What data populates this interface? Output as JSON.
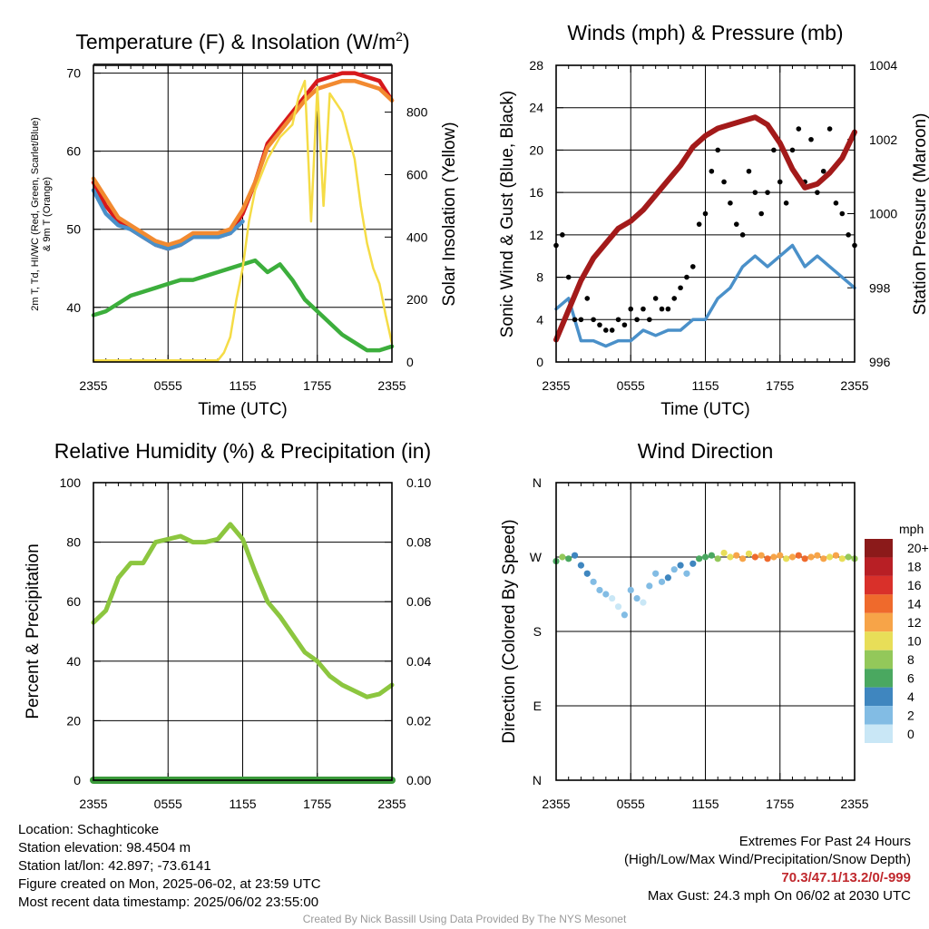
{
  "chart_data": [
    {
      "type": "line",
      "title": "Temperature (F) & Insolation (W/m²)",
      "xlabel": "Time (UTC)",
      "ylabel": "2m T, Td, HI/WC (Red, Green, Scarlet/Blue) & 9m T (Orange)",
      "ylabel_right": "Solar Insolation (Yellow)",
      "x_ticks": [
        "2355",
        "0555",
        "1155",
        "1755",
        "2355"
      ],
      "y_ticks": [
        40,
        50,
        60,
        70
      ],
      "y_ticks_right": [
        0,
        200,
        400,
        600,
        800
      ],
      "ylim": [
        33,
        71
      ],
      "ylim_right": [
        0,
        950
      ],
      "grid": true,
      "series": [
        {
          "name": "2m T",
          "axis": "left",
          "color": "#d7191c",
          "x": [
            0,
            1,
            2,
            3,
            4,
            5,
            6,
            7,
            8,
            9,
            10,
            11,
            12,
            13,
            14,
            15,
            16,
            17,
            18,
            19,
            20,
            21,
            22,
            23,
            24
          ],
          "y": [
            56,
            53,
            51,
            50,
            49,
            48,
            47.5,
            48,
            49,
            49,
            49,
            49.5,
            52,
            56,
            61,
            63,
            65,
            67,
            69,
            69.5,
            70,
            70,
            69.5,
            69,
            66.5
          ]
        },
        {
          "name": "HI/WC",
          "axis": "left",
          "color": "#4a90c9",
          "x": [
            0,
            1,
            2,
            3,
            4,
            5,
            6,
            7,
            8,
            9,
            10,
            11,
            12
          ],
          "y": [
            55,
            52,
            50.5,
            50,
            49,
            48,
            47.5,
            48,
            49,
            49,
            49,
            49.5,
            51
          ]
        },
        {
          "name": "9m T",
          "axis": "left",
          "color": "#f28a30",
          "x": [
            0,
            1,
            2,
            3,
            4,
            5,
            6,
            7,
            8,
            9,
            10,
            11,
            12,
            13,
            14,
            15,
            16,
            17,
            18,
            19,
            20,
            21,
            22,
            23,
            24
          ],
          "y": [
            56.5,
            54,
            51.5,
            50.5,
            49.5,
            48.5,
            48,
            48.5,
            49.5,
            49.5,
            49.5,
            50,
            52.5,
            56,
            60.5,
            62.5,
            64.5,
            66.5,
            68,
            68.5,
            69,
            69,
            68.5,
            68,
            66.5
          ]
        },
        {
          "name": "2m Td",
          "axis": "left",
          "color": "#3cae3c",
          "x": [
            0,
            1,
            2,
            3,
            4,
            5,
            6,
            7,
            8,
            9,
            10,
            11,
            12,
            13,
            14,
            15,
            16,
            17,
            18,
            19,
            20,
            21,
            22,
            23,
            24
          ],
          "y": [
            39,
            39.5,
            40.5,
            41.5,
            42,
            42.5,
            43,
            43.5,
            43.5,
            44,
            44.5,
            45,
            45.5,
            46,
            44.5,
            45.5,
            43.5,
            41,
            39.5,
            38,
            36.5,
            35.5,
            34.5,
            34.5,
            35
          ]
        },
        {
          "name": "Solar Insolation",
          "axis": "right",
          "color": "#f5dc46",
          "x": [
            0,
            2,
            4,
            6,
            8,
            9,
            10,
            10.5,
            11,
            11.5,
            12,
            12.5,
            13,
            14,
            15,
            16,
            16.5,
            17,
            17.5,
            18,
            18.5,
            19,
            20,
            21,
            21.5,
            22,
            22.5,
            23,
            23.5,
            24
          ],
          "y": [
            5,
            5,
            5,
            5,
            5,
            5,
            5,
            30,
            80,
            200,
            300,
            450,
            550,
            650,
            720,
            760,
            850,
            900,
            450,
            880,
            500,
            860,
            800,
            650,
            500,
            380,
            300,
            250,
            150,
            60
          ]
        }
      ]
    },
    {
      "type": "line",
      "title": "Winds (mph) & Pressure (mb)",
      "xlabel": "Time (UTC)",
      "ylabel": "Sonic Wind & Gust (Blue, Black)",
      "ylabel_right": "Station Pressure (Maroon)",
      "x_ticks": [
        "2355",
        "0555",
        "1155",
        "1755",
        "2355"
      ],
      "y_ticks": [
        0,
        4,
        8,
        12,
        16,
        20,
        24,
        28
      ],
      "y_ticks_right": [
        996,
        998,
        1000,
        1002,
        1004
      ],
      "ylim": [
        0,
        28
      ],
      "ylim_right": [
        996,
        1004
      ],
      "grid": true,
      "series": [
        {
          "name": "Sonic Wind",
          "axis": "left",
          "color": "#4a90c9",
          "x": [
            0,
            1,
            2,
            3,
            4,
            5,
            6,
            7,
            8,
            9,
            10,
            11,
            12,
            13,
            14,
            15,
            16,
            17,
            18,
            19,
            20,
            21,
            22,
            23,
            24
          ],
          "y": [
            5,
            6,
            2,
            2,
            1.5,
            2,
            2,
            3,
            2.5,
            3,
            3,
            4,
            4,
            6,
            7,
            9,
            10,
            9,
            10,
            11,
            9,
            10,
            9,
            8,
            7
          ]
        },
        {
          "name": "Gust",
          "axis": "left",
          "color": "#000000",
          "mode": "markers",
          "x": [
            0,
            0.5,
            1,
            1.5,
            2,
            2.5,
            3,
            3.5,
            4,
            4.5,
            5,
            5.5,
            6,
            6.5,
            7,
            7.5,
            8,
            8.5,
            9,
            9.5,
            10,
            10.5,
            11,
            11.5,
            12,
            12.5,
            13,
            13.5,
            14,
            14.5,
            15,
            15.5,
            16,
            16.5,
            17,
            17.5,
            18,
            18.5,
            19,
            19.5,
            20,
            20.5,
            21,
            21.5,
            22,
            22.5,
            23,
            23.5,
            24
          ],
          "y": [
            11,
            12,
            8,
            4,
            4,
            6,
            4,
            3.5,
            3,
            3,
            4,
            3.5,
            5,
            4,
            5,
            4,
            6,
            5,
            5,
            6,
            7,
            8,
            9,
            13,
            14,
            18,
            20,
            17,
            15,
            13,
            12,
            18,
            16,
            14,
            16,
            20,
            17,
            15,
            20,
            22,
            17,
            21,
            16,
            18,
            22,
            15,
            14,
            12,
            11
          ]
        },
        {
          "name": "Station Pressure",
          "axis": "right",
          "color": "#a31a1a",
          "x": [
            0,
            1,
            2,
            3,
            4,
            5,
            6,
            7,
            8,
            9,
            10,
            11,
            12,
            13,
            14,
            15,
            16,
            17,
            18,
            19,
            20,
            21,
            22,
            23,
            24
          ],
          "y": [
            996.6,
            997.4,
            998.2,
            998.8,
            999.2,
            999.6,
            999.8,
            1000.1,
            1000.5,
            1000.9,
            1001.3,
            1001.8,
            1002.1,
            1002.3,
            1002.4,
            1002.5,
            1002.6,
            1002.4,
            1001.9,
            1001.2,
            1000.7,
            1000.8,
            1001.1,
            1001.5,
            1002.2
          ]
        }
      ]
    },
    {
      "type": "line",
      "title": "Relative Humidity (%) & Precipitation (in)",
      "ylabel": "Percent & Precipitation",
      "x_ticks": [
        "2355",
        "0555",
        "1155",
        "1755",
        "2355"
      ],
      "y_ticks": [
        0,
        20,
        40,
        60,
        80,
        100
      ],
      "y_ticks_right": [
        "0.00",
        "0.02",
        "0.04",
        "0.06",
        "0.08",
        "0.10"
      ],
      "ylim": [
        0,
        100
      ],
      "ylim_right": [
        0,
        0.1
      ],
      "grid": true,
      "series": [
        {
          "name": "Relative Humidity",
          "axis": "left",
          "color": "#8cc63f",
          "x": [
            0,
            1,
            2,
            3,
            4,
            5,
            6,
            7,
            8,
            9,
            10,
            11,
            12,
            13,
            14,
            15,
            16,
            17,
            18,
            19,
            20,
            21,
            22,
            23,
            24
          ],
          "y": [
            53,
            57,
            68,
            73,
            73,
            80,
            81,
            82,
            80,
            80,
            81,
            86,
            81,
            70,
            60,
            55,
            49,
            43,
            40,
            35,
            32,
            30,
            28,
            29,
            32
          ]
        },
        {
          "name": "Precipitation",
          "axis": "right",
          "color": "#3a9a3a",
          "x": [
            0,
            24
          ],
          "y": [
            0,
            0
          ]
        }
      ]
    },
    {
      "type": "scatter",
      "title": "Wind Direction",
      "ylabel": "Direction (Colored By Speed)",
      "x_ticks": [
        "2355",
        "0555",
        "1155",
        "1755",
        "2355"
      ],
      "y_ticks": [
        "N",
        "E",
        "S",
        "W",
        "N"
      ],
      "colorbar": {
        "unit": "mph",
        "labels": [
          "20+",
          "18",
          "16",
          "14",
          "12",
          "10",
          "8",
          "6",
          "4",
          "2",
          "0"
        ],
        "colors": [
          "#8b1a1a",
          "#b81f25",
          "#d9302a",
          "#ef6a2c",
          "#f7a448",
          "#e8de58",
          "#93c85a",
          "#4aa860",
          "#3f86bf",
          "#82bce4",
          "#c9e7f6"
        ]
      },
      "points": [
        [
          0,
          265,
          6
        ],
        [
          0.5,
          270,
          8
        ],
        [
          1,
          268,
          6
        ],
        [
          1.5,
          272,
          4
        ],
        [
          2,
          260,
          4
        ],
        [
          2.5,
          250,
          3
        ],
        [
          3,
          240,
          2
        ],
        [
          3.5,
          230,
          1
        ],
        [
          4,
          225,
          2
        ],
        [
          4.5,
          220,
          0
        ],
        [
          5,
          210,
          0
        ],
        [
          5.5,
          200,
          1
        ],
        [
          6,
          230,
          2
        ],
        [
          6.5,
          220,
          1
        ],
        [
          7,
          215,
          0
        ],
        [
          7.5,
          235,
          1
        ],
        [
          8,
          250,
          2
        ],
        [
          8.5,
          240,
          2
        ],
        [
          9,
          245,
          3
        ],
        [
          9.5,
          255,
          2
        ],
        [
          10,
          260,
          3
        ],
        [
          10.5,
          250,
          2
        ],
        [
          11,
          262,
          4
        ],
        [
          11.5,
          268,
          5
        ],
        [
          12,
          270,
          5
        ],
        [
          12.5,
          272,
          6
        ],
        [
          13,
          268,
          8
        ],
        [
          13.5,
          275,
          9
        ],
        [
          14,
          270,
          10
        ],
        [
          14.5,
          272,
          12
        ],
        [
          15,
          268,
          11
        ],
        [
          15.5,
          274,
          10
        ],
        [
          16,
          270,
          13
        ],
        [
          16.5,
          272,
          12
        ],
        [
          17,
          268,
          14
        ],
        [
          17.5,
          270,
          11
        ],
        [
          18,
          272,
          12
        ],
        [
          18.5,
          268,
          10
        ],
        [
          19,
          270,
          12
        ],
        [
          19.5,
          272,
          13
        ],
        [
          20,
          268,
          14
        ],
        [
          20.5,
          270,
          12
        ],
        [
          21,
          272,
          11
        ],
        [
          21.5,
          268,
          12
        ],
        [
          22,
          270,
          10
        ],
        [
          22.5,
          272,
          11
        ],
        [
          23,
          268,
          9
        ],
        [
          23.5,
          270,
          8
        ],
        [
          24,
          268,
          7
        ]
      ]
    }
  ],
  "info": {
    "location": "Location: Schaghticoke",
    "elevation": "Station elevation: 98.4504 m",
    "latlon": "Station lat/lon: 42.897; -73.6141",
    "created": "Figure created on Mon, 2025-06-02, at 23:59 UTC",
    "recent": "Most recent data timestamp: 2025/06/02 23:55:00"
  },
  "extremes": {
    "title": "Extremes For Past 24 Hours",
    "subtitle": "(High/Low/Max Wind/Precipitation/Snow Depth)",
    "values": "70.3/47.1/13.2/0/-999",
    "gust": "Max Gust: 24.3 mph On 06/02 at 2030 UTC"
  },
  "credit": "Created By Nick Bassill Using Data Provided By The NYS Mesonet"
}
